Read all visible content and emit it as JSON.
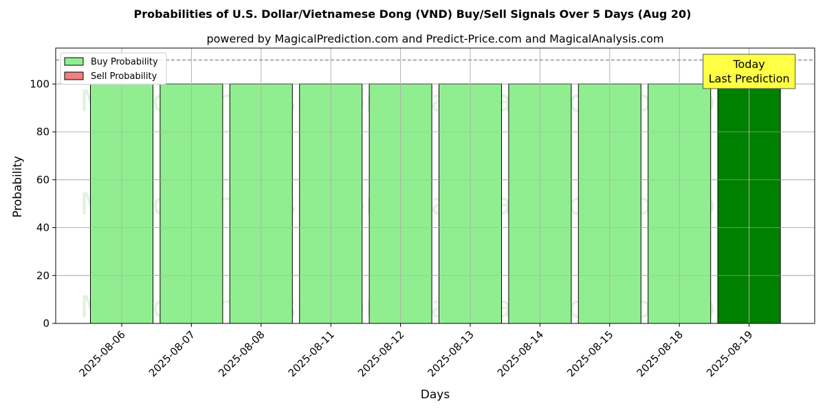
{
  "chart_data": {
    "type": "bar",
    "title": "Probabilities of U.S. Dollar/Vietnamese Dong (VND) Buy/Sell Signals Over 5 Days (Aug 20)",
    "subtitle": "powered by MagicalPrediction.com and Predict-Price.com and MagicalAnalysis.com",
    "xlabel": "Days",
    "ylabel": "Probability",
    "ylim": [
      0,
      115
    ],
    "yticks": [
      0,
      20,
      40,
      60,
      80,
      100
    ],
    "grid": true,
    "legend_position": "top-left",
    "categories": [
      "2025-08-06",
      "2025-08-07",
      "2025-08-08",
      "2025-08-11",
      "2025-08-12",
      "2025-08-13",
      "2025-08-14",
      "2025-08-15",
      "2025-08-18",
      "2025-08-19"
    ],
    "series": [
      {
        "name": "Buy Probability",
        "color": "#90ee90",
        "highlight_color": "#008000",
        "values": [
          100,
          100,
          100,
          100,
          100,
          100,
          100,
          100,
          100,
          100
        ]
      },
      {
        "name": "Sell Probability",
        "color": "#f08080",
        "values": [
          0,
          0,
          0,
          0,
          0,
          0,
          0,
          0,
          0,
          0
        ]
      }
    ],
    "reference_line": {
      "y": 110,
      "style": "dashed"
    },
    "annotation": {
      "lines": [
        "Today",
        "Last Prediction"
      ],
      "category": "2025-08-19",
      "color": "#ffff44"
    },
    "watermarks": [
      "MagicalAnalysis.com",
      "MagicalPrediction.com"
    ]
  }
}
